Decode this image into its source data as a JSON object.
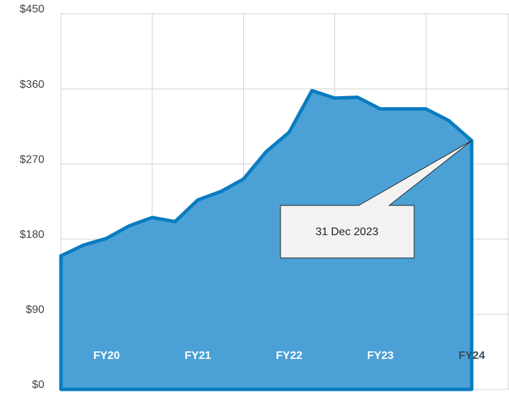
{
  "chart_data": {
    "type": "area",
    "categories": [
      null,
      null,
      null,
      null,
      null,
      null,
      null,
      null,
      null,
      null,
      null,
      null,
      null,
      null,
      null,
      null,
      null,
      null,
      null
    ],
    "series": [
      {
        "color": "#0a7cc0",
        "values": [
          160,
          173,
          181,
          196,
          206,
          201,
          227,
          237,
          252,
          285,
          308,
          358,
          349,
          350,
          336,
          336,
          336,
          322,
          298
        ]
      }
    ],
    "period_labels": [
      "FY20",
      "FY21",
      "FY22",
      "FY23",
      "FY24"
    ],
    "annotation": "31 Dec 2023",
    "ylim": [
      0,
      450
    ],
    "yticks": [
      {
        "value": 0,
        "label": "$0"
      },
      {
        "value": 90,
        "label": "$90"
      },
      {
        "value": 180,
        "label": "$180"
      },
      {
        "value": 270,
        "label": "$270"
      },
      {
        "value": 360,
        "label": "$360"
      },
      {
        "value": 450,
        "label": "$450"
      }
    ],
    "grid": true
  }
}
